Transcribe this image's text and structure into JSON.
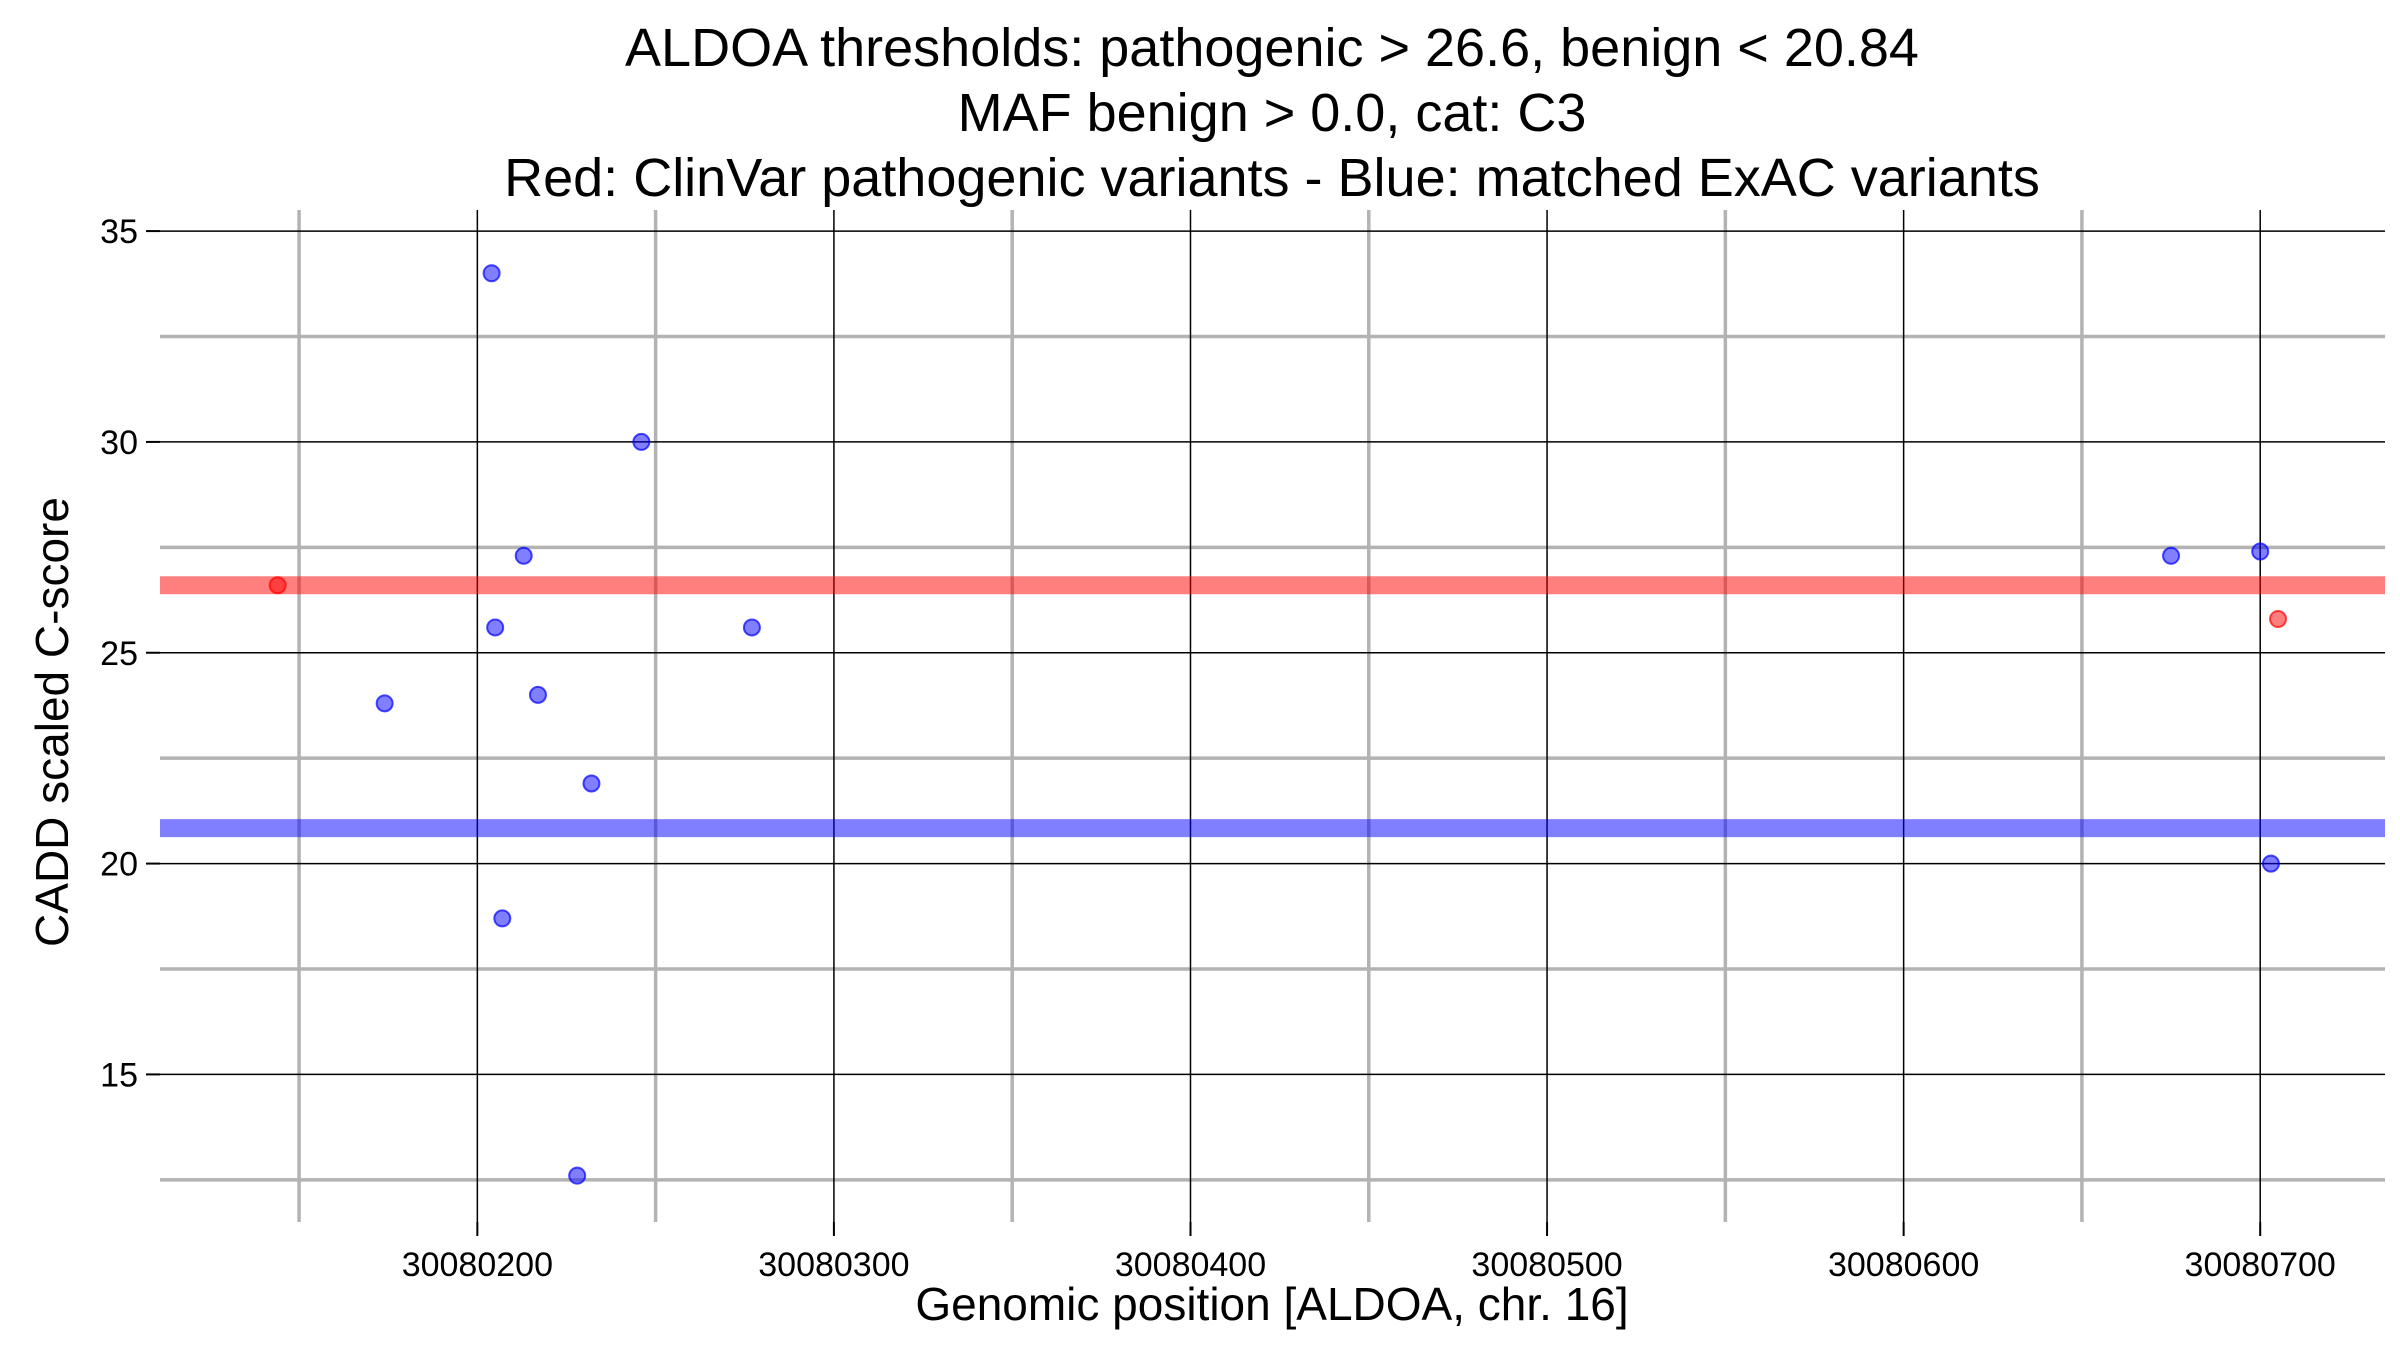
{
  "chart_data": {
    "type": "scatter",
    "title": [
      "ALDOA thresholds: pathogenic > 26.6, benign < 20.84",
      "MAF benign > 0.0, cat: C3",
      "Red: ClinVar pathogenic variants - Blue: matched ExAC variants"
    ],
    "xlabel": "Genomic position [ALDOA, chr. 16]",
    "ylabel": "CADD scaled C-score",
    "xlim": [
      30080111,
      30080735
    ],
    "ylim": [
      11.5,
      35.5
    ],
    "x_major_ticks": [
      30080200,
      30080300,
      30080400,
      30080500,
      30080600,
      30080700
    ],
    "x_major_tick_labels": [
      "30080200",
      "30080300",
      "30080400",
      "30080500",
      "30080600",
      "30080700"
    ],
    "x_minor_gridlines": [
      30080150,
      30080250,
      30080350,
      30080450,
      30080550,
      30080650
    ],
    "y_major_ticks": [
      15,
      20,
      25,
      30,
      35
    ],
    "y_major_tick_labels": [
      "15",
      "20",
      "25",
      "30",
      "35"
    ],
    "y_minor_gridlines": [
      12.5,
      17.5,
      22.5,
      27.5,
      32.5
    ],
    "grid": true,
    "legend": "none",
    "thresholds": [
      {
        "kind": "pathogenic",
        "y": 26.6,
        "color": "#ff0000"
      },
      {
        "kind": "benign",
        "y": 20.84,
        "color": "#0000ff"
      }
    ],
    "series": [
      {
        "color": "#ff0000",
        "points": [
          {
            "x": 30080144,
            "y": 26.6
          },
          {
            "x": 30080705,
            "y": 25.8
          }
        ]
      },
      {
        "color": "#0000ff",
        "points": [
          {
            "x": 30080174,
            "y": 23.8
          },
          {
            "x": 30080204,
            "y": 34.0
          },
          {
            "x": 30080205,
            "y": 25.6
          },
          {
            "x": 30080207,
            "y": 18.7
          },
          {
            "x": 30080213,
            "y": 27.3
          },
          {
            "x": 30080217,
            "y": 24.0
          },
          {
            "x": 30080228,
            "y": 12.6
          },
          {
            "x": 30080232,
            "y": 21.9
          },
          {
            "x": 30080246,
            "y": 30.0
          },
          {
            "x": 30080277,
            "y": 25.6
          },
          {
            "x": 30080675,
            "y": 27.3
          },
          {
            "x": 30080700,
            "y": 27.4
          },
          {
            "x": 30080703,
            "y": 20.0
          }
        ]
      }
    ]
  }
}
